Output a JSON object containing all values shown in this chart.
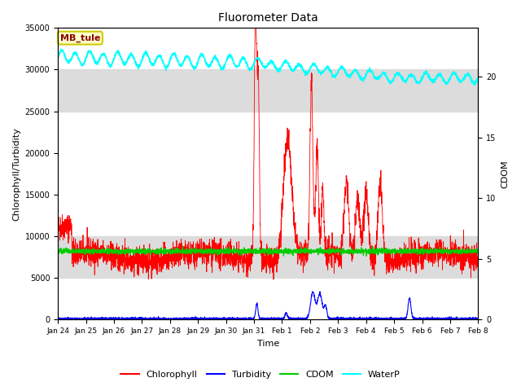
{
  "title": "Fluorometer Data",
  "xlabel": "Time",
  "ylabel_left": "Chlorophyll/Turbidity",
  "ylabel_right": "CDOM",
  "ylim_left": [
    0,
    35000
  ],
  "ylim_right": [
    0,
    24
  ],
  "annotation_text": "MB_tule",
  "legend_entries": [
    "Chlorophyll",
    "Turbidity",
    "CDOM",
    "WaterP"
  ],
  "colors": {
    "chlorophyll": "#ff0000",
    "turbidity": "#0000ff",
    "cdom": "#00cc00",
    "waterp": "#00ffff"
  },
  "xtick_labels": [
    "Jan 24",
    "Jan 25",
    "Jan 26",
    "Jan 27",
    "Jan 28",
    "Jan 29",
    "Jan 30",
    "Jan 31",
    "Feb 1",
    "Feb 2",
    "Feb 3",
    "Feb 4",
    "Feb 5",
    "Feb 6",
    "Feb 7",
    "Feb 8"
  ],
  "bg_band1": [
    5000,
    10000
  ],
  "bg_band2": [
    25000,
    30000
  ],
  "bg_color": "#dcdcdc"
}
